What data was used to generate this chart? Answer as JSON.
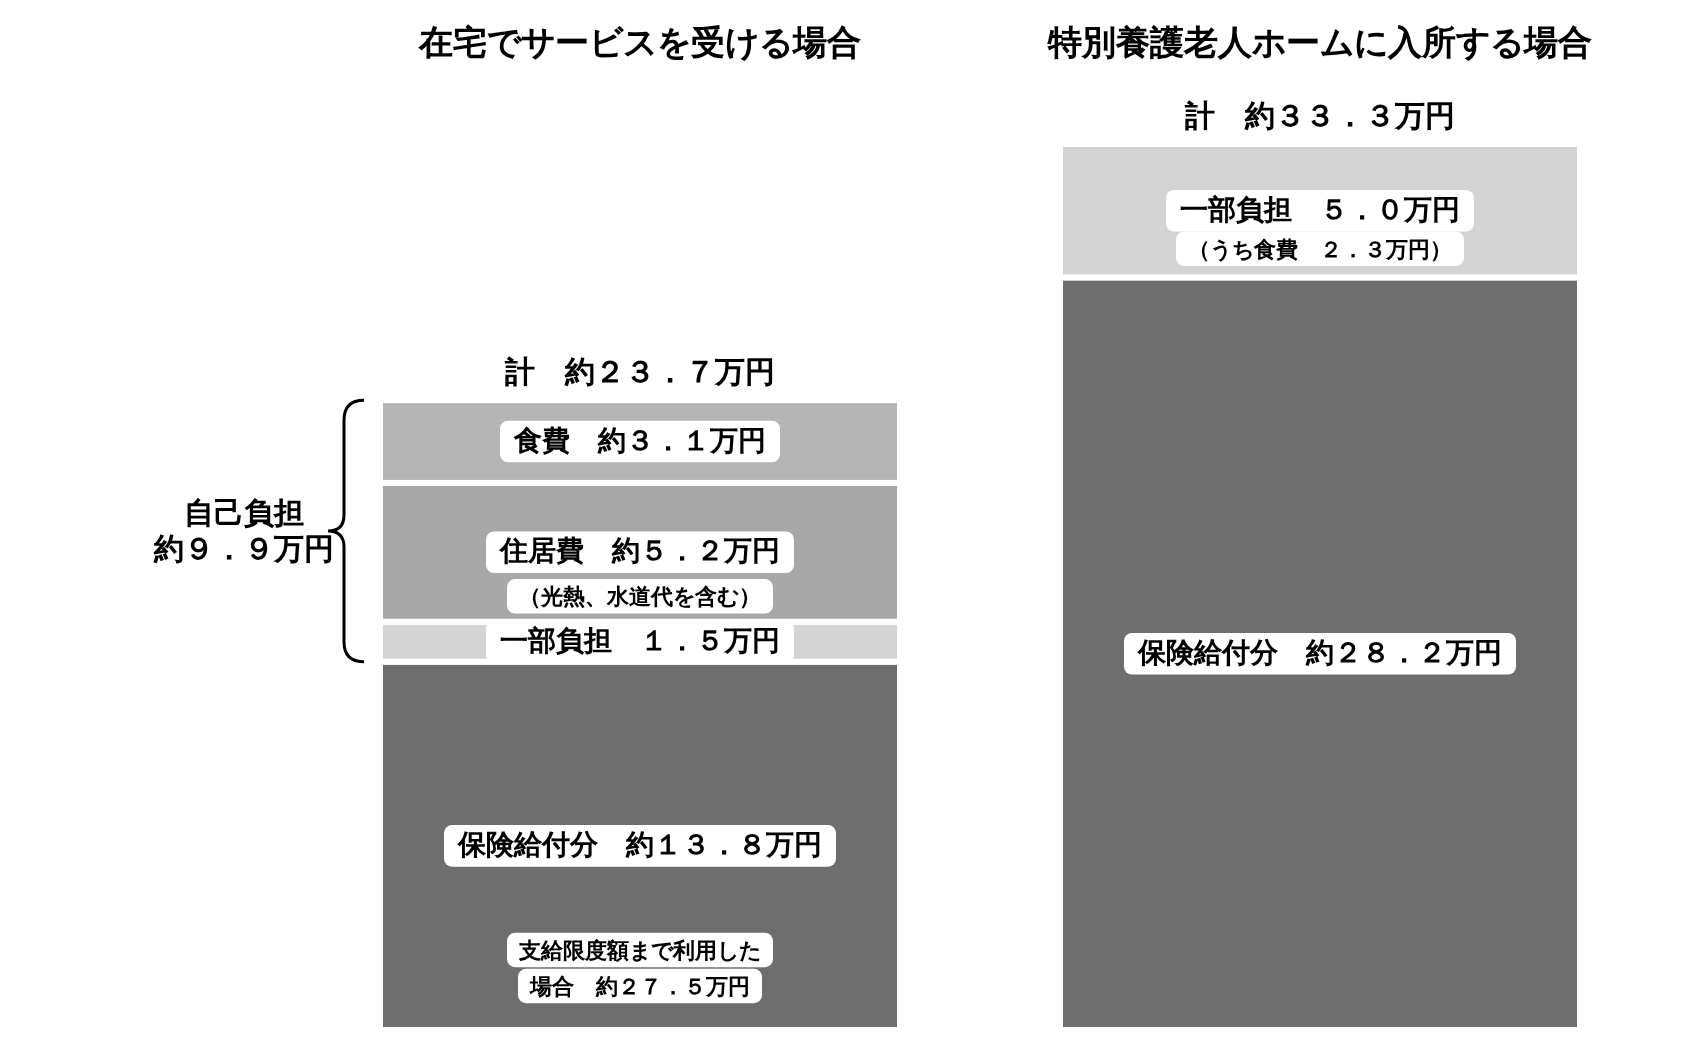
{
  "chart_data": {
    "type": "bar",
    "stacked": true,
    "categories": [
      "在宅でサービスを受ける場合",
      "特別養護老人ホームに入所する場合"
    ],
    "series": [
      {
        "name": "保険給付分",
        "color": "#6e6e6e",
        "values": [
          13.8,
          28.2
        ],
        "value_labels": [
          "約１３．８万円",
          "約２８．２万円"
        ]
      },
      {
        "name": "一部負担",
        "color": "#d4d4d4",
        "values": [
          1.5,
          5.0
        ],
        "value_labels": [
          "１．５万円",
          "５．０万円"
        ]
      },
      {
        "name": "住居費",
        "color": "#a8a8a8",
        "values": [
          5.2,
          null
        ],
        "value_labels": [
          "約５．２万円",
          null
        ]
      },
      {
        "name": "食費",
        "color": "#b4b4b4",
        "values": [
          3.1,
          null
        ],
        "value_labels": [
          "約３．１万円",
          null
        ]
      }
    ],
    "totals": [
      "計　約２３．７万円",
      "計　約３３．３万円"
    ],
    "annotations": [
      "自己負担",
      "約９．９万円",
      "（光熱、水道代を含む）",
      "（うち食費　２．３万円）",
      "支給限度額まで利用した",
      "場合　約２７．５万円"
    ]
  }
}
